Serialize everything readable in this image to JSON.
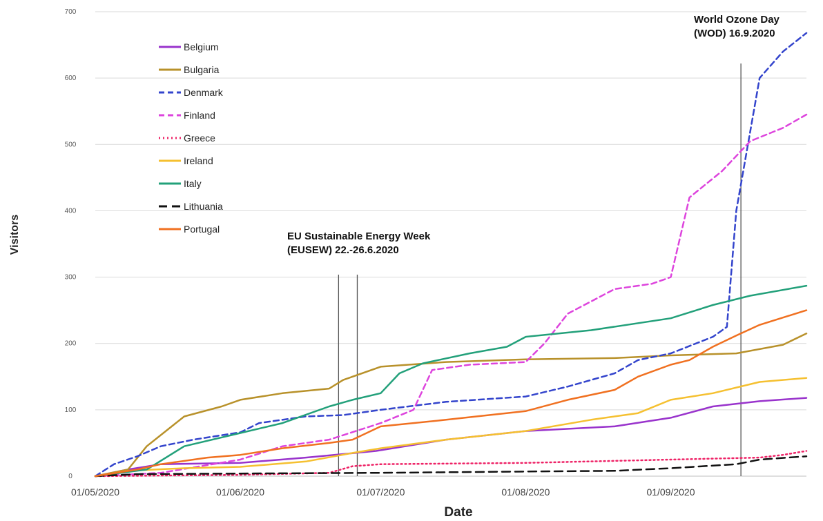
{
  "chart_data": {
    "type": "line",
    "xlabel": "Date",
    "ylabel": "Visitors",
    "ylim": [
      0,
      700
    ],
    "yticks": [
      "0",
      "100",
      "200",
      "300",
      "400",
      "500",
      "600",
      "700"
    ],
    "xtick_labels": [
      "01/05/2020",
      "01/06/2020",
      "01/07/2020",
      "01/08/2020",
      "01/09/2020"
    ],
    "xlim": [
      "2020-05-01",
      "2020-09-30"
    ],
    "grid": "horizontal",
    "legend_placement": "top-left",
    "series": [
      {
        "name": "Belgium",
        "color": "#9933cc",
        "dash": "solid",
        "points": [
          [
            "2020-05-01",
            0
          ],
          [
            "2020-05-08",
            10
          ],
          [
            "2020-05-15",
            18
          ],
          [
            "2020-06-01",
            20
          ],
          [
            "2020-06-15",
            28
          ],
          [
            "2020-06-30",
            38
          ],
          [
            "2020-07-15",
            55
          ],
          [
            "2020-08-01",
            68
          ],
          [
            "2020-08-20",
            75
          ],
          [
            "2020-09-01",
            88
          ],
          [
            "2020-09-10",
            105
          ],
          [
            "2020-09-20",
            113
          ],
          [
            "2020-09-30",
            118
          ]
        ]
      },
      {
        "name": "Bulgaria",
        "color": "#b8912a",
        "dash": "solid",
        "points": [
          [
            "2020-05-01",
            0
          ],
          [
            "2020-05-08",
            10
          ],
          [
            "2020-05-12",
            45
          ],
          [
            "2020-05-20",
            90
          ],
          [
            "2020-05-28",
            105
          ],
          [
            "2020-06-01",
            115
          ],
          [
            "2020-06-10",
            125
          ],
          [
            "2020-06-20",
            132
          ],
          [
            "2020-06-23",
            145
          ],
          [
            "2020-07-01",
            165
          ],
          [
            "2020-07-15",
            172
          ],
          [
            "2020-08-01",
            176
          ],
          [
            "2020-08-20",
            178
          ],
          [
            "2020-09-01",
            182
          ],
          [
            "2020-09-15",
            185
          ],
          [
            "2020-09-25",
            198
          ],
          [
            "2020-09-30",
            215
          ]
        ]
      },
      {
        "name": "Denmark",
        "color": "#3344cc",
        "dash": "dashed",
        "points": [
          [
            "2020-05-01",
            0
          ],
          [
            "2020-05-05",
            18
          ],
          [
            "2020-05-10",
            30
          ],
          [
            "2020-05-15",
            45
          ],
          [
            "2020-05-22",
            55
          ],
          [
            "2020-06-01",
            66
          ],
          [
            "2020-06-05",
            80
          ],
          [
            "2020-06-15",
            90
          ],
          [
            "2020-06-23",
            92
          ],
          [
            "2020-07-01",
            100
          ],
          [
            "2020-07-15",
            112
          ],
          [
            "2020-08-01",
            120
          ],
          [
            "2020-08-10",
            135
          ],
          [
            "2020-08-20",
            155
          ],
          [
            "2020-08-25",
            175
          ],
          [
            "2020-09-01",
            185
          ],
          [
            "2020-09-10",
            210
          ],
          [
            "2020-09-13",
            225
          ],
          [
            "2020-09-15",
            400
          ],
          [
            "2020-09-20",
            600
          ],
          [
            "2020-09-25",
            640
          ],
          [
            "2020-09-30",
            668
          ]
        ]
      },
      {
        "name": "Finland",
        "color": "#dd44dd",
        "dash": "dashed",
        "points": [
          [
            "2020-05-01",
            0
          ],
          [
            "2020-05-15",
            5
          ],
          [
            "2020-06-01",
            25
          ],
          [
            "2020-06-10",
            45
          ],
          [
            "2020-06-20",
            55
          ],
          [
            "2020-07-01",
            80
          ],
          [
            "2020-07-08",
            100
          ],
          [
            "2020-07-12",
            160
          ],
          [
            "2020-07-20",
            168
          ],
          [
            "2020-08-01",
            172
          ],
          [
            "2020-08-05",
            200
          ],
          [
            "2020-08-10",
            245
          ],
          [
            "2020-08-20",
            282
          ],
          [
            "2020-08-28",
            290
          ],
          [
            "2020-09-01",
            300
          ],
          [
            "2020-09-05",
            420
          ],
          [
            "2020-09-12",
            460
          ],
          [
            "2020-09-18",
            505
          ],
          [
            "2020-09-25",
            525
          ],
          [
            "2020-09-30",
            545
          ]
        ]
      },
      {
        "name": "Greece",
        "color": "#ee2266",
        "dash": "dotted",
        "points": [
          [
            "2020-05-01",
            0
          ],
          [
            "2020-06-01",
            2
          ],
          [
            "2020-06-20",
            5
          ],
          [
            "2020-06-25",
            15
          ],
          [
            "2020-07-01",
            18
          ],
          [
            "2020-08-01",
            20
          ],
          [
            "2020-09-01",
            25
          ],
          [
            "2020-09-20",
            28
          ],
          [
            "2020-09-25",
            32
          ],
          [
            "2020-09-30",
            38
          ]
        ]
      },
      {
        "name": "Ireland",
        "color": "#f5c030",
        "dash": "solid",
        "points": [
          [
            "2020-05-01",
            0
          ],
          [
            "2020-05-08",
            8
          ],
          [
            "2020-05-20",
            12
          ],
          [
            "2020-06-01",
            14
          ],
          [
            "2020-06-15",
            22
          ],
          [
            "2020-06-25",
            35
          ],
          [
            "2020-07-01",
            42
          ],
          [
            "2020-07-15",
            55
          ],
          [
            "2020-08-01",
            68
          ],
          [
            "2020-08-15",
            85
          ],
          [
            "2020-08-25",
            95
          ],
          [
            "2020-09-01",
            115
          ],
          [
            "2020-09-10",
            125
          ],
          [
            "2020-09-20",
            142
          ],
          [
            "2020-09-30",
            148
          ]
        ]
      },
      {
        "name": "Italy",
        "color": "#22a07a",
        "dash": "solid",
        "points": [
          [
            "2020-05-01",
            0
          ],
          [
            "2020-05-12",
            10
          ],
          [
            "2020-05-20",
            45
          ],
          [
            "2020-06-01",
            65
          ],
          [
            "2020-06-10",
            80
          ],
          [
            "2020-06-20",
            105
          ],
          [
            "2020-06-25",
            115
          ],
          [
            "2020-07-01",
            125
          ],
          [
            "2020-07-05",
            155
          ],
          [
            "2020-07-10",
            170
          ],
          [
            "2020-07-20",
            185
          ],
          [
            "2020-07-28",
            195
          ],
          [
            "2020-08-01",
            210
          ],
          [
            "2020-08-15",
            220
          ],
          [
            "2020-09-01",
            238
          ],
          [
            "2020-09-10",
            258
          ],
          [
            "2020-09-18",
            272
          ],
          [
            "2020-09-30",
            287
          ]
        ]
      },
      {
        "name": "Lithuania",
        "color": "#111111",
        "dash": "longdash",
        "points": [
          [
            "2020-05-01",
            0
          ],
          [
            "2020-05-10",
            3
          ],
          [
            "2020-06-01",
            4
          ],
          [
            "2020-07-01",
            5
          ],
          [
            "2020-08-01",
            7
          ],
          [
            "2020-08-20",
            8
          ],
          [
            "2020-09-01",
            12
          ],
          [
            "2020-09-15",
            18
          ],
          [
            "2020-09-20",
            25
          ],
          [
            "2020-09-30",
            30
          ]
        ]
      },
      {
        "name": "Portugal",
        "color": "#f07020",
        "dash": "solid",
        "points": [
          [
            "2020-05-01",
            0
          ],
          [
            "2020-05-10",
            10
          ],
          [
            "2020-05-15",
            18
          ],
          [
            "2020-05-25",
            28
          ],
          [
            "2020-06-01",
            32
          ],
          [
            "2020-06-10",
            42
          ],
          [
            "2020-06-20",
            50
          ],
          [
            "2020-06-25",
            55
          ],
          [
            "2020-07-01",
            75
          ],
          [
            "2020-07-15",
            85
          ],
          [
            "2020-08-01",
            98
          ],
          [
            "2020-08-10",
            115
          ],
          [
            "2020-08-20",
            130
          ],
          [
            "2020-08-25",
            150
          ],
          [
            "2020-09-01",
            168
          ],
          [
            "2020-09-05",
            175
          ],
          [
            "2020-09-10",
            195
          ],
          [
            "2020-09-15",
            212
          ],
          [
            "2020-09-20",
            228
          ],
          [
            "2020-09-30",
            250
          ]
        ]
      }
    ],
    "annotations": [
      {
        "lines": [
          "EU Sustainable Energy Week",
          "(EUSEW) 22.-26.6.2020"
        ],
        "dates": [
          "2020-06-22",
          "2020-06-26"
        ]
      },
      {
        "lines": [
          "World Ozone Day",
          "(WOD) 16.9.2020"
        ],
        "dates": [
          "2020-09-16"
        ]
      }
    ]
  }
}
